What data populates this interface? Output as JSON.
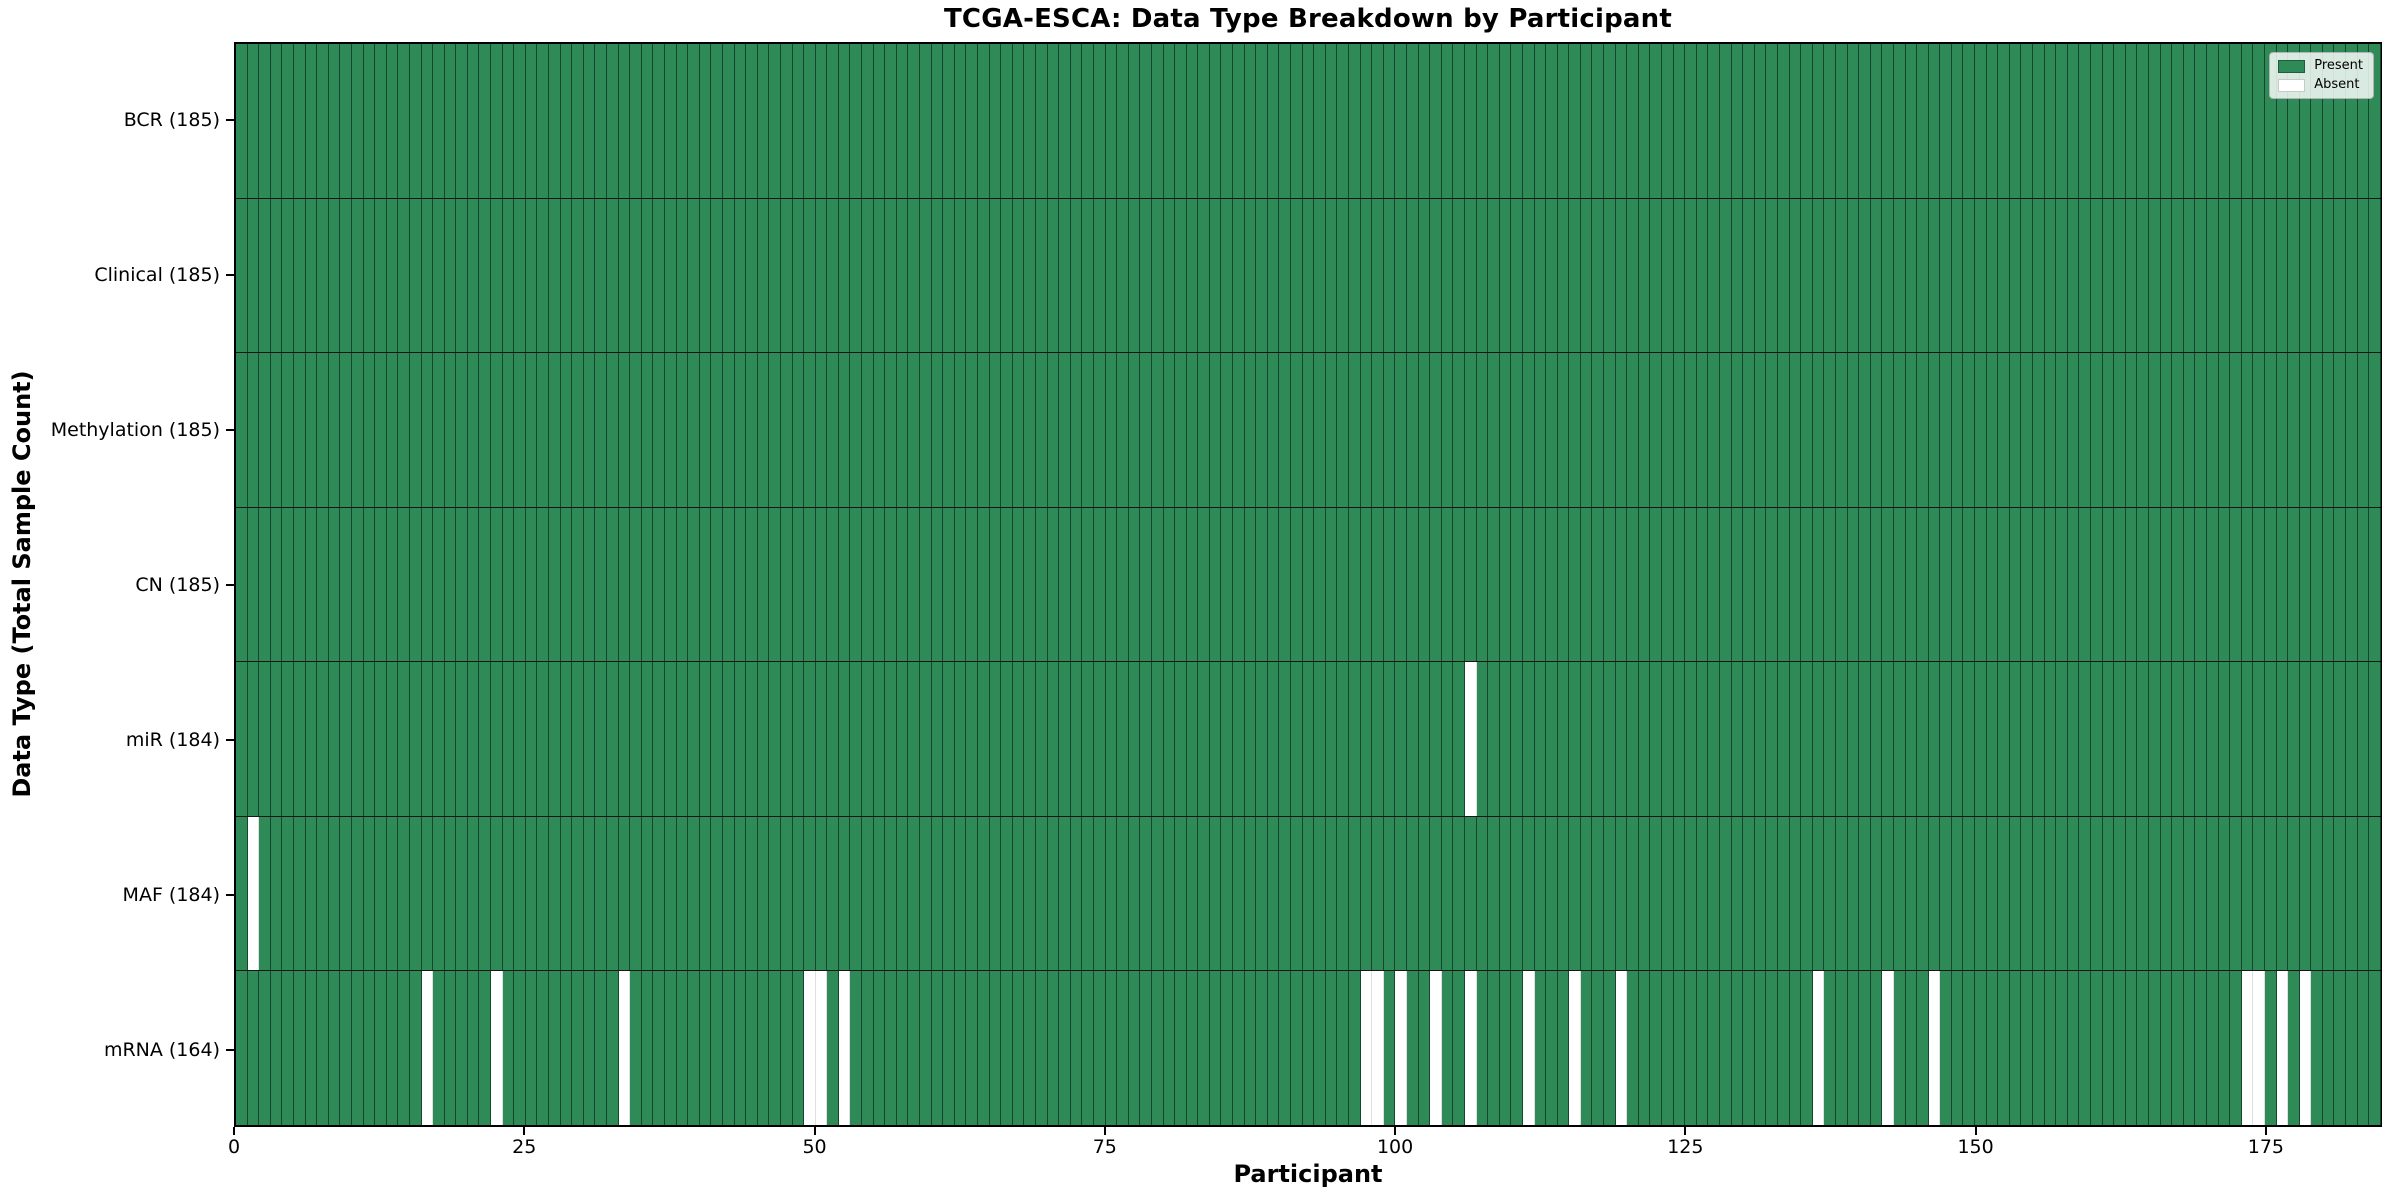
{
  "chart_data": {
    "type": "heatmap",
    "title": "TCGA-ESCA: Data Type Breakdown by Participant",
    "xlabel": "Participant",
    "ylabel": "Data Type (Total Sample Count)",
    "x_ticks": [
      0,
      25,
      50,
      75,
      100,
      125,
      150,
      175
    ],
    "xlim": [
      0,
      185
    ],
    "n_participants": 185,
    "legend_position": "upper right",
    "legend": [
      {
        "label": "Present",
        "color": "#2e8b57"
      },
      {
        "label": "Absent",
        "color": "#ffffff"
      }
    ],
    "rows": [
      {
        "data_type": "BCR",
        "total": 185,
        "label": "BCR (185)",
        "absent_participants": []
      },
      {
        "data_type": "Clinical",
        "total": 185,
        "label": "Clinical (185)",
        "absent_participants": []
      },
      {
        "data_type": "Methylation",
        "total": 185,
        "label": "Methylation (185)",
        "absent_participants": []
      },
      {
        "data_type": "CN",
        "total": 185,
        "label": "CN (185)",
        "absent_participants": []
      },
      {
        "data_type": "miR",
        "total": 184,
        "label": "miR (184)",
        "absent_participants": [
          106
        ]
      },
      {
        "data_type": "MAF",
        "total": 184,
        "label": "MAF (184)",
        "absent_participants": [
          1
        ]
      },
      {
        "data_type": "mRNA",
        "total": 164,
        "label": "mRNA (164)",
        "absent_participants": [
          16,
          22,
          33,
          49,
          50,
          52,
          97,
          98,
          100,
          103,
          106,
          111,
          115,
          119,
          136,
          142,
          146,
          173,
          174,
          176,
          178
        ]
      }
    ],
    "colors": {
      "present": "#2e8b57",
      "absent": "#ffffff",
      "column_gridline": "rgba(0,0,0,0.5)",
      "row_divider": "#161616",
      "spine": "#000000"
    }
  }
}
